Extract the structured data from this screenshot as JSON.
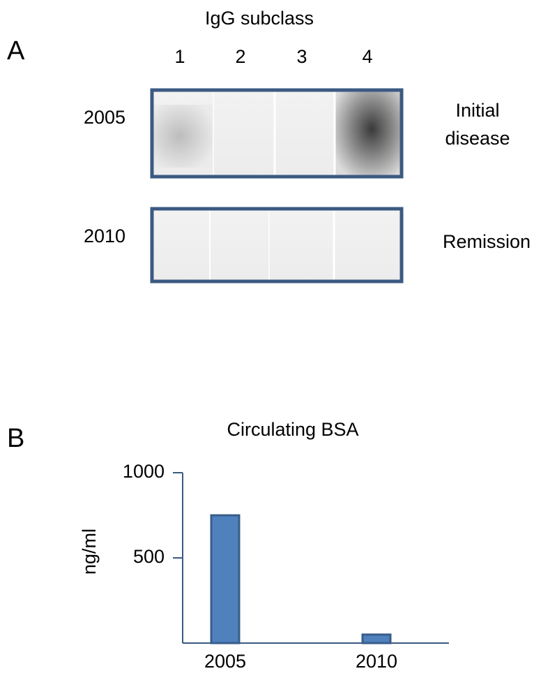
{
  "panel_a": {
    "label": "A",
    "title": "IgG subclass",
    "lanes": [
      "1",
      "2",
      "3",
      "4"
    ],
    "rows": [
      {
        "year": "2005",
        "label": "Initial disease"
      },
      {
        "year": "2010",
        "label": "Remission"
      }
    ]
  },
  "panel_b": {
    "label": "B"
  },
  "chart_data": {
    "type": "bar",
    "title": "Circulating BSA",
    "y_label": "ng/ml",
    "categories": [
      "2005",
      "2010"
    ],
    "values": [
      750,
      50
    ],
    "color": "#4f81bd",
    "ylim": [
      0,
      1000
    ],
    "yticks": [
      500,
      1000
    ]
  }
}
